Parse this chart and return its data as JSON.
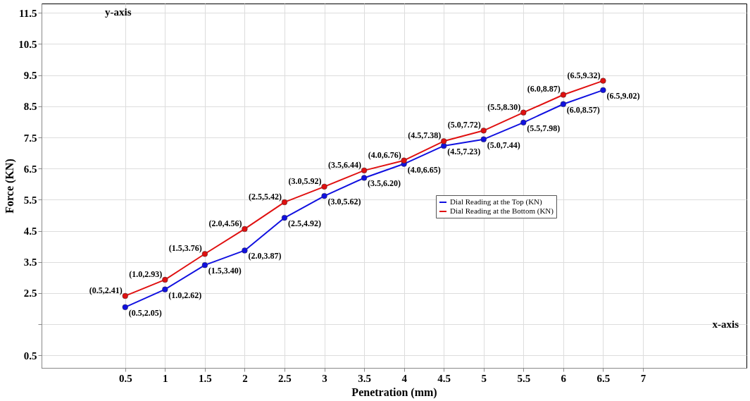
{
  "chart_data": {
    "type": "line",
    "xlabel": "Penetration (mm)",
    "ylabel": "Force (KN)",
    "annotations": [
      "y-axis",
      "x-axis"
    ],
    "x": [
      0.5,
      1,
      1.5,
      2,
      2.5,
      3,
      3.5,
      4,
      4.5,
      5,
      5.5,
      6,
      6.5
    ],
    "series": [
      {
        "name": "Dial Reading at the Top (KN)",
        "color": "#1010e0",
        "values": [
          2.05,
          2.62,
          3.4,
          3.87,
          4.92,
          5.62,
          6.2,
          6.65,
          7.23,
          7.44,
          7.98,
          8.57,
          9.02
        ],
        "value_labels": [
          "(0.5,2.05)",
          "(1.0,2.62)",
          "(1.5,3.40)",
          "(2.0,3.87)",
          "(2.5,4.92)",
          "(3.0,5.62)",
          "(3.5,6.20)",
          "(4.0,6.65)",
          "(4.5,7.23)",
          "(5.0,7.44)",
          "(5.5,7.98)",
          "(6.0,8.57)",
          "(6.5,9.02)"
        ]
      },
      {
        "name": "Dial Reading at the Bottom (KN)",
        "color": "#e01010",
        "values": [
          2.41,
          2.93,
          3.76,
          4.56,
          5.42,
          5.92,
          6.44,
          6.76,
          7.38,
          7.72,
          8.3,
          8.87,
          9.32
        ],
        "value_labels": [
          "(0.5,2.41)",
          "(1.0,2.93)",
          "(1.5,3.76)",
          "(2.0,4.56)",
          "(2.5,5.42)",
          "(3.0,5.92)",
          "(3.5,6.44)",
          "(4.0,6.76)",
          "(4.5,7.38)",
          "(5.0,7.72)",
          "(5.5,8.30)",
          "(6.0,8.87)",
          "(6.5,9.32)"
        ]
      }
    ],
    "xlim": [
      -0.55,
      8.3
    ],
    "ylim": [
      0.1,
      11.8
    ],
    "xticks": [
      0.5,
      1,
      1.5,
      2,
      2.5,
      3,
      3.5,
      4,
      4.5,
      5,
      5.5,
      6,
      6.5,
      7
    ],
    "yticks": [
      0.5,
      {
        "value": 1.5,
        "label": null
      },
      2.5,
      3.5,
      4.5,
      5.5,
      6.5,
      7.5,
      8.5,
      9.5,
      10.5,
      11.5
    ],
    "grid": true,
    "legend": "right",
    "marker": "circle",
    "line_style": "solid"
  }
}
